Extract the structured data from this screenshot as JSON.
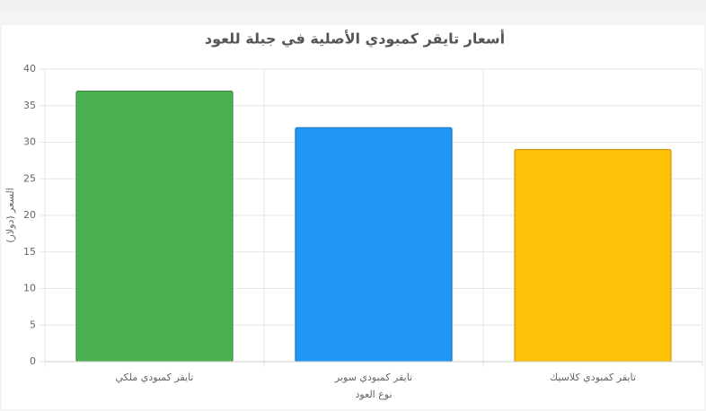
{
  "chart_data": {
    "type": "bar",
    "title": "أسعار تايقر كمبودي الأصلية في جبلة للعود",
    "x_label": "نوع العود",
    "y_label": "السعر (دولار)",
    "categories": [
      "تايقر كمبودي ملكي",
      "تايقر كمبودي سوبر",
      "تايقر كمبودي كلاسيك"
    ],
    "values": [
      37,
      32,
      29
    ],
    "colors": [
      "#4caf50",
      "#2196f3",
      "#ffc107"
    ],
    "ylim": [
      0,
      40
    ],
    "yticks": [
      0,
      5,
      10,
      15,
      20,
      25,
      30,
      35,
      40
    ],
    "grid": true
  }
}
